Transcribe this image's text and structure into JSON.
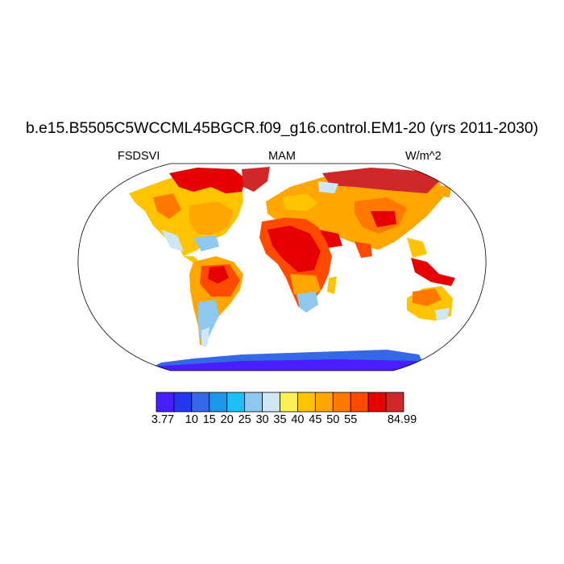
{
  "title": "b.e15.B5505C5WCCML45BGCR.f09_g16.control.EM1-20 (yrs 2011-2030)",
  "left_label": "FSDSVI",
  "center_label": "MAM",
  "right_label": "W/m^2",
  "colorbar": {
    "colors": [
      "#4a1dff",
      "#2337f0",
      "#3568e6",
      "#1e96ea",
      "#1cc0f7",
      "#8ec8ef",
      "#cfe6f7",
      "#ffef57",
      "#ffc300",
      "#ffa600",
      "#ff7800",
      "#ff4a00",
      "#e60000",
      "#d02828"
    ],
    "labels": [
      "3.77",
      "10",
      "15",
      "20",
      "25",
      "30",
      "35",
      "40",
      "45",
      "50",
      "55",
      "84.99"
    ]
  }
}
